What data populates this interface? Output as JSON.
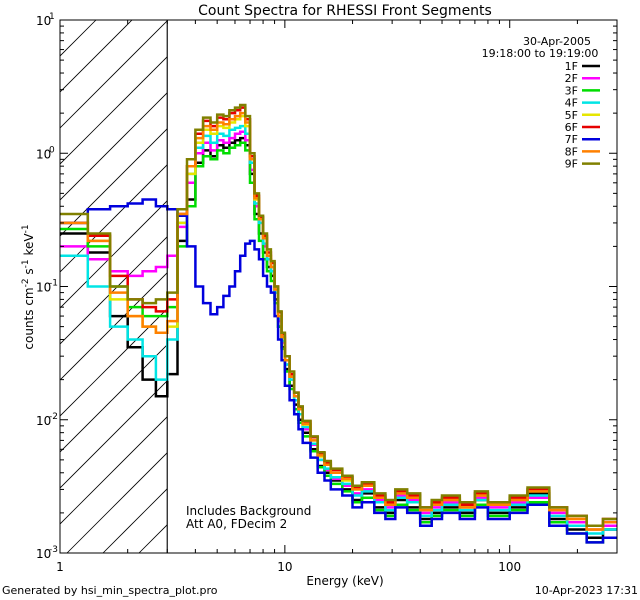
{
  "chart_data": {
    "type": "line",
    "title": "Count Spectra for RHESSI Front Segments",
    "xlabel": "Energy (keV)",
    "ylabel_parts": [
      "counts cm",
      "-2",
      " s",
      "-1",
      " keV",
      "-1"
    ],
    "x_scale": "log",
    "y_scale": "log",
    "xlim": [
      1,
      300
    ],
    "ylim": [
      0.001,
      10
    ],
    "x_ticks": [
      {
        "v": 10,
        "label": "10"
      },
      {
        "v": 100,
        "label": "100"
      }
    ],
    "y_ticks": [
      {
        "v": 0.001,
        "base": "10",
        "exp": "-3"
      },
      {
        "v": 0.01,
        "base": "10",
        "exp": "-2"
      },
      {
        "v": 0.1,
        "base": "10",
        "exp": "-1"
      },
      {
        "v": 1,
        "base": "10",
        "exp": "0"
      },
      {
        "v": 10,
        "base": "10",
        "exp": "1"
      }
    ],
    "x_tick_label_one": "1",
    "hatched_region": [
      1,
      3
    ],
    "date": "30-Apr-2005",
    "time_range": "19:18:00 to 19:19:00",
    "annotations": [
      "Includes Background",
      "Att A0, FDecim 2"
    ],
    "energy_bins": [
      1.0,
      1.33,
      1.67,
      2.0,
      2.33,
      2.67,
      3.0,
      3.33,
      3.67,
      4.0,
      4.33,
      4.67,
      5.0,
      5.33,
      5.67,
      6.0,
      6.33,
      6.67,
      7.0,
      7.33,
      7.67,
      8.0,
      8.33,
      8.67,
      9.0,
      9.33,
      9.67,
      10.0,
      10.5,
      11.0,
      11.5,
      12.0,
      13.0,
      14.0,
      15.0,
      16.0,
      18.0,
      20.0,
      22.0,
      25.0,
      28.0,
      31.0,
      35.0,
      40.0,
      45.0,
      50.0,
      60.0,
      70.0,
      80.0,
      100.0,
      120.0,
      150.0,
      180.0,
      220.0,
      260.0,
      300.0
    ],
    "series": [
      {
        "name": "1F",
        "color": "#000000",
        "values": [
          0.25,
          0.18,
          0.06,
          0.035,
          0.02,
          0.015,
          0.022,
          0.22,
          0.45,
          0.85,
          1.05,
          0.95,
          1.15,
          1.1,
          1.2,
          1.25,
          1.3,
          1.15,
          0.7,
          0.35,
          0.25,
          0.18,
          0.14,
          0.12,
          0.08,
          0.05,
          0.035,
          0.024,
          0.018,
          0.013,
          0.01,
          0.008,
          0.006,
          0.0045,
          0.004,
          0.0035,
          0.003,
          0.0025,
          0.0028,
          0.0022,
          0.002,
          0.0025,
          0.0022,
          0.0018,
          0.002,
          0.0022,
          0.002,
          0.0025,
          0.002,
          0.0022,
          0.0028,
          0.0018,
          0.0015,
          0.0013,
          0.0015
        ]
      },
      {
        "name": "2F",
        "color": "#ff00ff",
        "values": [
          0.2,
          0.16,
          0.13,
          0.12,
          0.13,
          0.14,
          0.17,
          0.28,
          0.6,
          1.0,
          1.2,
          1.05,
          1.25,
          1.2,
          1.3,
          1.4,
          1.45,
          1.25,
          0.75,
          0.4,
          0.3,
          0.2,
          0.16,
          0.13,
          0.09,
          0.055,
          0.038,
          0.026,
          0.02,
          0.014,
          0.011,
          0.0085,
          0.0065,
          0.005,
          0.0042,
          0.0036,
          0.0032,
          0.0028,
          0.003,
          0.0025,
          0.0022,
          0.0027,
          0.0025,
          0.002,
          0.0022,
          0.0024,
          0.0021,
          0.0026,
          0.0022,
          0.0024,
          0.0026,
          0.002,
          0.0017,
          0.0015,
          0.0016
        ]
      },
      {
        "name": "3F",
        "color": "#00dd00",
        "values": [
          0.27,
          0.2,
          0.1,
          0.07,
          0.06,
          0.06,
          0.07,
          0.2,
          0.4,
          0.8,
          0.95,
          0.9,
          1.05,
          1.0,
          1.1,
          1.15,
          1.2,
          1.05,
          0.6,
          0.32,
          0.22,
          0.16,
          0.13,
          0.11,
          0.075,
          0.05,
          0.034,
          0.023,
          0.017,
          0.012,
          0.0095,
          0.0075,
          0.0058,
          0.0044,
          0.0038,
          0.0033,
          0.0029,
          0.0024,
          0.0026,
          0.0021,
          0.0019,
          0.0023,
          0.0021,
          0.0017,
          0.0019,
          0.0021,
          0.0019,
          0.0023,
          0.0019,
          0.0021,
          0.0024,
          0.0017,
          0.0014,
          0.0012,
          0.0013
        ]
      },
      {
        "name": "4F",
        "color": "#00e5e5",
        "values": [
          0.17,
          0.1,
          0.05,
          0.04,
          0.03,
          0.02,
          0.04,
          0.3,
          0.7,
          1.1,
          1.35,
          1.2,
          1.4,
          1.35,
          1.5,
          1.55,
          1.6,
          1.4,
          0.85,
          0.42,
          0.3,
          0.21,
          0.16,
          0.13,
          0.09,
          0.057,
          0.039,
          0.026,
          0.02,
          0.014,
          0.011,
          0.0088,
          0.0066,
          0.005,
          0.0043,
          0.0037,
          0.0033,
          0.0027,
          0.0029,
          0.0024,
          0.0021,
          0.0026,
          0.0024,
          0.0019,
          0.0021,
          0.0023,
          0.0021,
          0.0025,
          0.0021,
          0.0023,
          0.0027,
          0.0019,
          0.0016,
          0.0014,
          0.0015
        ]
      },
      {
        "name": "5F",
        "color": "#e6e600",
        "values": [
          0.3,
          0.22,
          0.08,
          0.06,
          0.05,
          0.045,
          0.05,
          0.3,
          0.7,
          1.2,
          1.5,
          1.4,
          1.6,
          1.55,
          1.7,
          1.8,
          1.9,
          1.6,
          0.9,
          0.45,
          0.32,
          0.23,
          0.17,
          0.14,
          0.095,
          0.06,
          0.041,
          0.028,
          0.021,
          0.015,
          0.012,
          0.0092,
          0.007,
          0.0053,
          0.0046,
          0.004,
          0.0035,
          0.003,
          0.0032,
          0.0026,
          0.0023,
          0.0028,
          0.0026,
          0.0021,
          0.0023,
          0.0025,
          0.0022,
          0.0027,
          0.0023,
          0.0025,
          0.0029,
          0.0021,
          0.0018,
          0.0015,
          0.0017
        ]
      },
      {
        "name": "6F",
        "color": "#e60000",
        "values": [
          0.3,
          0.24,
          0.12,
          0.08,
          0.07,
          0.065,
          0.08,
          0.35,
          0.8,
          1.4,
          1.75,
          1.6,
          1.85,
          1.8,
          2.0,
          2.1,
          2.2,
          1.8,
          0.95,
          0.48,
          0.33,
          0.24,
          0.18,
          0.15,
          0.1,
          0.064,
          0.044,
          0.03,
          0.022,
          0.016,
          0.0125,
          0.0097,
          0.0074,
          0.0056,
          0.0048,
          0.0042,
          0.0037,
          0.0031,
          0.0033,
          0.0027,
          0.0024,
          0.0029,
          0.0027,
          0.0022,
          0.0024,
          0.0026,
          0.0023,
          0.0028,
          0.0024,
          0.0026,
          0.003,
          0.0022,
          0.0019,
          0.0016,
          0.0018
        ]
      },
      {
        "name": "7F",
        "color": "#0000dd",
        "values": [
          0.3,
          0.38,
          0.4,
          0.42,
          0.45,
          0.4,
          0.38,
          0.34,
          0.2,
          0.1,
          0.075,
          0.062,
          0.07,
          0.085,
          0.1,
          0.13,
          0.17,
          0.21,
          0.22,
          0.19,
          0.16,
          0.12,
          0.1,
          0.09,
          0.06,
          0.04,
          0.028,
          0.018,
          0.014,
          0.011,
          0.0085,
          0.0067,
          0.0052,
          0.004,
          0.0035,
          0.003,
          0.0027,
          0.0022,
          0.0024,
          0.002,
          0.0018,
          0.0022,
          0.002,
          0.0016,
          0.0018,
          0.002,
          0.0018,
          0.0022,
          0.0018,
          0.002,
          0.0023,
          0.0016,
          0.0014,
          0.0012,
          0.0013
        ]
      },
      {
        "name": "8F",
        "color": "#ff8000",
        "values": [
          0.3,
          0.22,
          0.09,
          0.06,
          0.05,
          0.045,
          0.055,
          0.35,
          0.8,
          1.3,
          1.6,
          1.5,
          1.7,
          1.65,
          1.8,
          1.9,
          2.0,
          1.7,
          0.9,
          0.46,
          0.32,
          0.23,
          0.17,
          0.14,
          0.095,
          0.06,
          0.042,
          0.028,
          0.021,
          0.015,
          0.012,
          0.0093,
          0.007,
          0.0054,
          0.0046,
          0.004,
          0.0036,
          0.003,
          0.0032,
          0.0026,
          0.0023,
          0.0028,
          0.0026,
          0.0021,
          0.0023,
          0.0025,
          0.0022,
          0.0027,
          0.0023,
          0.0025,
          0.0029,
          0.0021,
          0.0018,
          0.0015,
          0.0017
        ]
      },
      {
        "name": "9F",
        "color": "#808000",
        "values": [
          0.35,
          0.25,
          0.1,
          0.08,
          0.075,
          0.08,
          0.09,
          0.38,
          0.9,
          1.5,
          1.85,
          1.7,
          1.95,
          1.9,
          2.1,
          2.2,
          2.3,
          1.9,
          1.0,
          0.5,
          0.34,
          0.25,
          0.19,
          0.155,
          0.1,
          0.065,
          0.045,
          0.03,
          0.023,
          0.016,
          0.0126,
          0.0098,
          0.0075,
          0.0057,
          0.0049,
          0.0043,
          0.0038,
          0.0032,
          0.0034,
          0.0028,
          0.0025,
          0.003,
          0.0028,
          0.0022,
          0.0025,
          0.0027,
          0.0024,
          0.0029,
          0.0024,
          0.0027,
          0.0031,
          0.0022,
          0.0019,
          0.0016,
          0.0018
        ]
      }
    ]
  },
  "footer": {
    "generated_by": "Generated by hsi_min_spectra_plot.pro",
    "timestamp": "10-Apr-2023 17:31"
  }
}
